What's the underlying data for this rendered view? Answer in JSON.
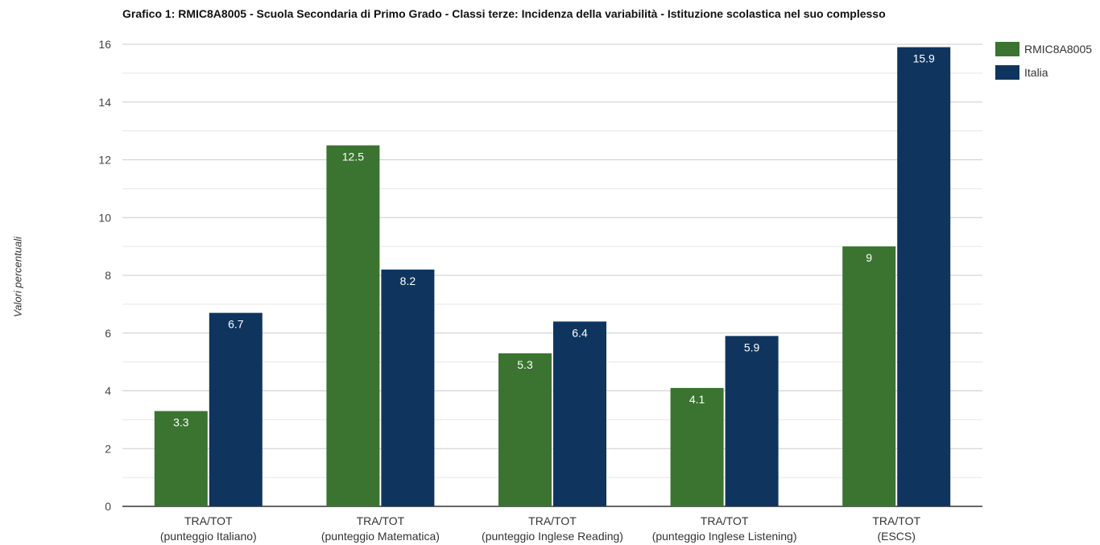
{
  "chart_data": {
    "type": "bar",
    "title": "Grafico 1: RMIC8A8005 - Scuola Secondaria di Primo Grado - Classi terze: Incidenza della variabilità - Istituzione scolastica nel suo complesso",
    "ylabel": "Valori percentuali",
    "xlabel": "",
    "ylim": [
      0,
      16
    ],
    "yticks": [
      "0",
      "2",
      "4",
      "6",
      "8",
      "10",
      "12",
      "14",
      "16"
    ],
    "grid": true,
    "legend_position": "top-right",
    "categories": [
      {
        "line1": "TRA/TOT",
        "line2": "(punteggio Italiano)"
      },
      {
        "line1": "TRA/TOT",
        "line2": "(punteggio Matematica)"
      },
      {
        "line1": "TRA/TOT",
        "line2": "(punteggio Inglese Reading)"
      },
      {
        "line1": "TRA/TOT",
        "line2": "(punteggio Inglese Listening)"
      },
      {
        "line1": "TRA/TOT",
        "line2": "(ESCS)"
      }
    ],
    "series": [
      {
        "name": "RMIC8A8005",
        "color": "#3a7430",
        "values": [
          3.3,
          12.5,
          5.3,
          4.1,
          9
        ],
        "labels": [
          "3.3",
          "12.5",
          "5.3",
          "4.1",
          "9"
        ]
      },
      {
        "name": "Italia",
        "color": "#0f355f",
        "values": [
          6.7,
          8.2,
          6.4,
          5.9,
          15.9
        ],
        "labels": [
          "6.7",
          "8.2",
          "6.4",
          "5.9",
          "15.9"
        ]
      }
    ]
  }
}
